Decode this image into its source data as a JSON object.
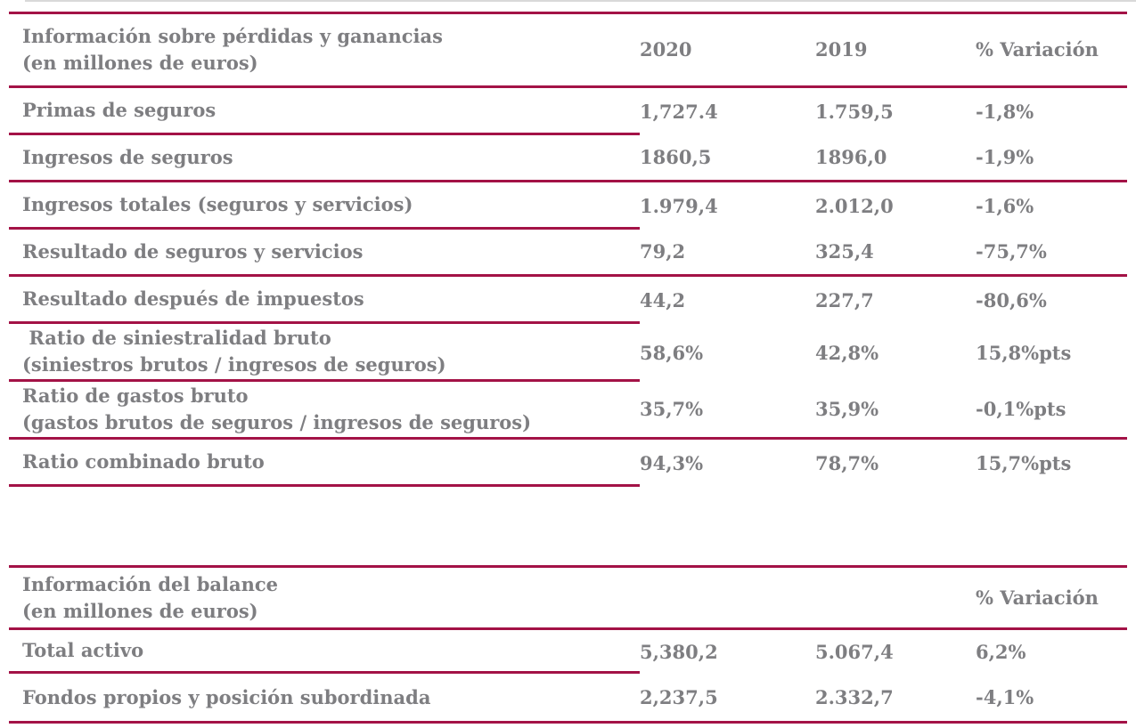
{
  "colors": {
    "accent": "#A31246",
    "text_gray": "#7E7E81"
  },
  "pl_table": {
    "header": {
      "title_line1": "Información sobre pérdidas y ganancias",
      "title_line2": "(en millones de euros)",
      "col_2020": "2020",
      "col_2019": "2019",
      "col_variation": "% Variación"
    },
    "rows": [
      {
        "label_line1": "Primas de seguros",
        "v2020": "1,727.4",
        "v2019": "1.759,5",
        "variation": "-1,8%"
      },
      {
        "label_line1": "Ingresos de seguros",
        "v2020": "1860,5",
        "v2019": "1896,0",
        "variation": "-1,9%"
      },
      {
        "label_line1": "Ingresos totales (seguros y servicios)",
        "v2020": "1.979,4",
        "v2019": "2.012,0",
        "variation": "-1,6%"
      },
      {
        "label_line1": "Resultado de seguros y servicios",
        "v2020": "79,2",
        "v2019": "325,4",
        "variation": "-75,7%"
      },
      {
        "label_line1": "Resultado después de impuestos",
        "v2020": "44,2",
        "v2019": "227,7",
        "variation": "-80,6%"
      },
      {
        "label_line1": " Ratio de siniestralidad bruto",
        "label_line2": "(siniestros brutos / ingresos de seguros)",
        "v2020": "58,6%",
        "v2019": "42,8%",
        "variation": "15,8%pts"
      },
      {
        "label_line1": "Ratio de gastos bruto",
        "label_line2": "(gastos brutos de seguros / ingresos de seguros)",
        "v2020": "35,7%",
        "v2019": "35,9%",
        "variation": "-0,1%pts"
      },
      {
        "label_line1": "Ratio combinado bruto",
        "v2020": "94,3%",
        "v2019": "78,7%",
        "variation": "15,7%pts"
      }
    ]
  },
  "balance_table": {
    "header": {
      "title_line1": "Información del balance",
      "title_line2": "(en millones de euros)",
      "col_variation": "% Variación"
    },
    "rows": [
      {
        "label_line1": "Total activo",
        "v2020": "5,380,2",
        "v2019": "5.067,4",
        "variation": "6,2%"
      },
      {
        "label_line1": "Fondos propios y posición subordinada",
        "v2020": "2,237,5",
        "v2019": "2.332,7",
        "variation": "-4,1%"
      }
    ]
  }
}
